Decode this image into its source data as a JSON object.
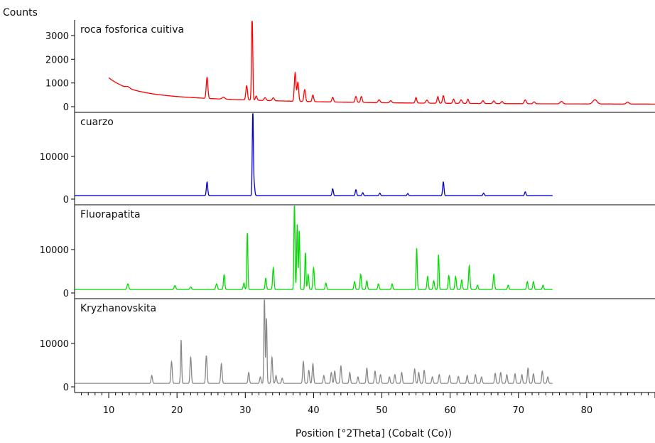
{
  "chart_data": {
    "type": "line",
    "ylabel": "Counts",
    "xlabel": "Position [°2Theta] (Cobalt (Co))",
    "xlim": [
      5,
      90
    ],
    "x_ticks": [
      10,
      20,
      30,
      40,
      50,
      60,
      70,
      80
    ],
    "panels": [
      {
        "name": "roca fosforica cuitiva",
        "color": "#ff0000",
        "ylim": [
          0,
          3600
        ],
        "yticks": [
          0,
          1000,
          2000,
          3000
        ],
        "x_start": 10,
        "x_end": 90,
        "baseline": {
          "a": 620,
          "b": 500,
          "k": 0.32,
          "floor": 100
        },
        "peaks": [
          [
            12.8,
            60,
            0.25
          ],
          [
            24.4,
            880,
            0.12
          ],
          [
            26.8,
            80,
            0.2
          ],
          [
            30.2,
            600,
            0.12
          ],
          [
            31.0,
            3600,
            0.09
          ],
          [
            31.6,
            180,
            0.12
          ],
          [
            32.9,
            120,
            0.15
          ],
          [
            34.1,
            120,
            0.15
          ],
          [
            37.3,
            1200,
            0.12
          ],
          [
            37.7,
            800,
            0.12
          ],
          [
            38.7,
            500,
            0.12
          ],
          [
            39.9,
            280,
            0.12
          ],
          [
            42.8,
            200,
            0.12
          ],
          [
            46.2,
            250,
            0.12
          ],
          [
            47.0,
            250,
            0.12
          ],
          [
            49.6,
            120,
            0.15
          ],
          [
            51.3,
            90,
            0.15
          ],
          [
            55.0,
            230,
            0.12
          ],
          [
            56.6,
            130,
            0.15
          ],
          [
            58.2,
            280,
            0.12
          ],
          [
            59.0,
            320,
            0.12
          ],
          [
            60.5,
            180,
            0.12
          ],
          [
            61.6,
            150,
            0.15
          ],
          [
            62.6,
            180,
            0.12
          ],
          [
            64.8,
            120,
            0.15
          ],
          [
            66.4,
            110,
            0.15
          ],
          [
            67.6,
            90,
            0.15
          ],
          [
            71.0,
            160,
            0.15
          ],
          [
            72.3,
            80,
            0.15
          ],
          [
            76.3,
            100,
            0.2
          ],
          [
            81.2,
            180,
            0.3
          ],
          [
            86.0,
            80,
            0.2
          ]
        ]
      },
      {
        "name": "cuarzo",
        "color": "#0000cc",
        "ylim": [
          0,
          20000
        ],
        "yticks": [
          0,
          10000
        ],
        "x_start": 5,
        "x_end": 75,
        "baseline": {
          "a": 800,
          "b": 0,
          "k": 0.1,
          "floor": 800
        },
        "peaks": [
          [
            24.4,
            3200,
            0.1
          ],
          [
            31.1,
            20000,
            0.08
          ],
          [
            31.3,
            2500,
            0.1
          ],
          [
            42.8,
            1600,
            0.1
          ],
          [
            46.2,
            1400,
            0.1
          ],
          [
            47.2,
            700,
            0.1
          ],
          [
            49.7,
            600,
            0.1
          ],
          [
            53.8,
            500,
            0.1
          ],
          [
            59.0,
            3200,
            0.1
          ],
          [
            64.9,
            600,
            0.1
          ],
          [
            71.0,
            900,
            0.1
          ]
        ]
      },
      {
        "name": "Fluorapatita",
        "color": "#00dd00",
        "ylim": [
          0,
          20000
        ],
        "yticks": [
          0,
          10000
        ],
        "x_start": 5,
        "x_end": 75,
        "baseline": {
          "a": 800,
          "b": 0,
          "k": 0.1,
          "floor": 800
        },
        "peaks": [
          [
            12.8,
            1300,
            0.12
          ],
          [
            19.7,
            900,
            0.12
          ],
          [
            22.0,
            600,
            0.12
          ],
          [
            25.8,
            1300,
            0.12
          ],
          [
            26.9,
            3400,
            0.1
          ],
          [
            29.8,
            1500,
            0.1
          ],
          [
            30.3,
            13000,
            0.08
          ],
          [
            33.0,
            2600,
            0.1
          ],
          [
            34.1,
            5000,
            0.1
          ],
          [
            37.2,
            20000,
            0.08
          ],
          [
            37.6,
            15000,
            0.08
          ],
          [
            37.9,
            13500,
            0.08
          ],
          [
            38.8,
            8500,
            0.08
          ],
          [
            39.2,
            3500,
            0.1
          ],
          [
            40.0,
            5000,
            0.1
          ],
          [
            41.8,
            1500,
            0.1
          ],
          [
            46.0,
            1800,
            0.1
          ],
          [
            46.9,
            3500,
            0.1
          ],
          [
            47.8,
            2000,
            0.1
          ],
          [
            49.5,
            1300,
            0.1
          ],
          [
            51.5,
            1300,
            0.1
          ],
          [
            55.1,
            9500,
            0.08
          ],
          [
            56.7,
            3000,
            0.1
          ],
          [
            57.6,
            2000,
            0.1
          ],
          [
            58.3,
            8000,
            0.08
          ],
          [
            59.8,
            3200,
            0.1
          ],
          [
            60.8,
            3000,
            0.1
          ],
          [
            61.7,
            2200,
            0.1
          ],
          [
            62.8,
            5500,
            0.1
          ],
          [
            64.0,
            1000,
            0.1
          ],
          [
            66.4,
            3500,
            0.1
          ],
          [
            68.5,
            1000,
            0.1
          ],
          [
            71.3,
            1800,
            0.1
          ],
          [
            72.2,
            1800,
            0.1
          ],
          [
            73.6,
            1000,
            0.1
          ]
        ]
      },
      {
        "name": "Kryzhanovskita",
        "color": "#888888",
        "ylim": [
          0,
          20000
        ],
        "yticks": [
          0,
          10000
        ],
        "x_start": 5,
        "x_end": 75,
        "baseline": {
          "a": 800,
          "b": 0,
          "k": 0.1,
          "floor": 800
        },
        "peaks": [
          [
            16.3,
            1800,
            0.1
          ],
          [
            19.2,
            5000,
            0.1
          ],
          [
            20.6,
            10000,
            0.08
          ],
          [
            22.0,
            6000,
            0.1
          ],
          [
            24.3,
            6400,
            0.1
          ],
          [
            26.5,
            4500,
            0.1
          ],
          [
            30.5,
            2500,
            0.1
          ],
          [
            32.2,
            1500,
            0.1
          ],
          [
            32.8,
            20000,
            0.08
          ],
          [
            33.1,
            15000,
            0.08
          ],
          [
            33.9,
            6000,
            0.1
          ],
          [
            34.5,
            1800,
            0.1
          ],
          [
            35.4,
            1200,
            0.1
          ],
          [
            38.5,
            5000,
            0.1
          ],
          [
            39.3,
            3000,
            0.1
          ],
          [
            39.9,
            4500,
            0.1
          ],
          [
            41.5,
            1800,
            0.1
          ],
          [
            42.6,
            2500,
            0.1
          ],
          [
            43.1,
            2800,
            0.1
          ],
          [
            44.0,
            4000,
            0.1
          ],
          [
            45.3,
            2500,
            0.1
          ],
          [
            46.5,
            1500,
            0.1
          ],
          [
            47.8,
            3500,
            0.1
          ],
          [
            49.0,
            2800,
            0.1
          ],
          [
            49.8,
            2000,
            0.1
          ],
          [
            51.1,
            1500,
            0.1
          ],
          [
            51.9,
            2000,
            0.1
          ],
          [
            52.9,
            2500,
            0.1
          ],
          [
            54.8,
            3300,
            0.1
          ],
          [
            55.4,
            2500,
            0.1
          ],
          [
            56.2,
            3000,
            0.1
          ],
          [
            57.4,
            1500,
            0.1
          ],
          [
            58.4,
            2000,
            0.1
          ],
          [
            59.9,
            1800,
            0.1
          ],
          [
            61.2,
            1600,
            0.1
          ],
          [
            62.5,
            1800,
            0.1
          ],
          [
            63.7,
            2000,
            0.1
          ],
          [
            64.6,
            1500,
            0.1
          ],
          [
            66.6,
            2300,
            0.1
          ],
          [
            67.4,
            2500,
            0.1
          ],
          [
            68.3,
            2000,
            0.1
          ],
          [
            69.5,
            2200,
            0.1
          ],
          [
            70.5,
            2000,
            0.1
          ],
          [
            71.4,
            3500,
            0.1
          ],
          [
            72.2,
            2200,
            0.1
          ],
          [
            73.5,
            2800,
            0.1
          ],
          [
            74.3,
            1500,
            0.1
          ]
        ]
      }
    ]
  }
}
